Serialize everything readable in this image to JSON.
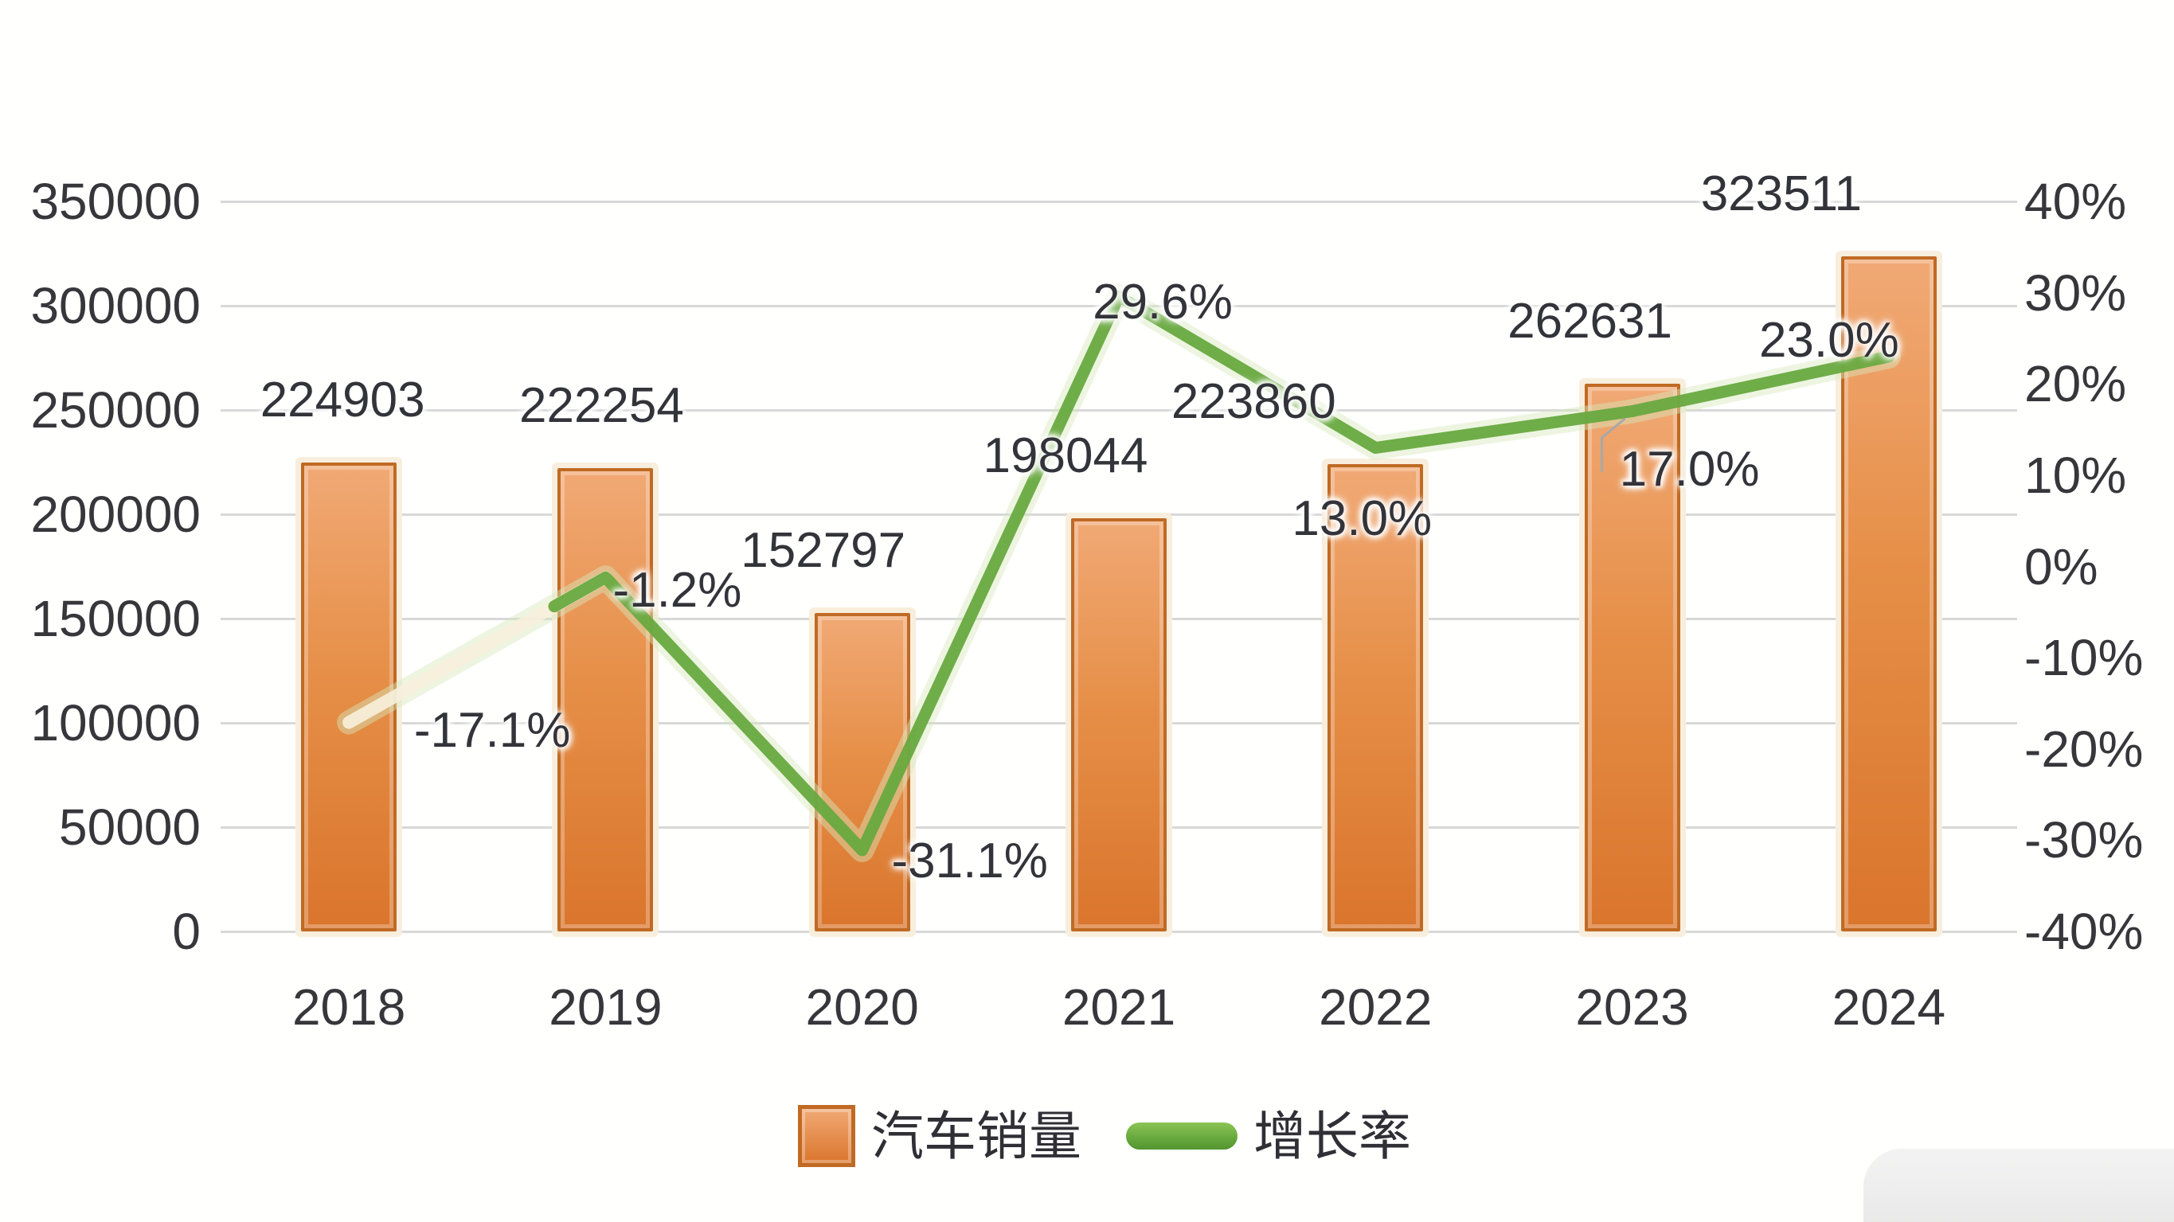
{
  "legend": {
    "bar_label": "汽车销量",
    "line_label": "增长率"
  },
  "colors": {
    "bar_fill_top": "#f1a975",
    "bar_fill_bottom": "#da752c",
    "bar_border": "#c06a24",
    "bar_outline": "#f8eedd",
    "line_green": "#68a93f",
    "line_glow": "#d6e8be",
    "ghost_line": "#f7f0db",
    "gridline": "#d8d8d8",
    "leader_line": "#a8a8a8",
    "text": "#36363b"
  },
  "chart_data": {
    "type": "bar+line combo",
    "categories": [
      "2018",
      "2019",
      "2020",
      "2021",
      "2022",
      "2023",
      "2024"
    ],
    "series": [
      {
        "name": "汽车销量",
        "type": "bar",
        "axis": "left",
        "values": [
          224903,
          222254,
          152797,
          198044,
          223860,
          262631,
          323511
        ],
        "labels": [
          "224903",
          "222254",
          "152797",
          "198044",
          "223860",
          "262631",
          "323511"
        ]
      },
      {
        "name": "增长率",
        "type": "line",
        "axis": "right",
        "values_percent": [
          -17.1,
          -1.2,
          -31.1,
          29.6,
          13.0,
          17.0,
          23.0
        ],
        "labels": [
          "-17.1%",
          "-1.2%",
          "-31.1%",
          "29.6%",
          "13.0%",
          "17.0%",
          "23.0%"
        ]
      }
    ],
    "left_axis": {
      "min": 0,
      "max": 350000,
      "step": 50000,
      "ticks": [
        "0",
        "50000",
        "100000",
        "150000",
        "200000",
        "250000",
        "300000",
        "350000"
      ]
    },
    "right_axis": {
      "min": -40,
      "max": 40,
      "step": 10,
      "ticks": [
        "-40%",
        "-30%",
        "-20%",
        "-10%",
        "0%",
        "10%",
        "20%",
        "30%",
        "40%"
      ]
    },
    "grid": true,
    "legend_position": "bottom"
  }
}
